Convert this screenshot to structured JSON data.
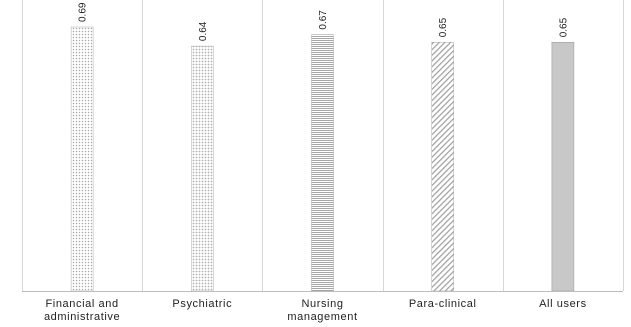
{
  "chart_data": {
    "type": "bar",
    "title": "",
    "xlabel": "",
    "ylabel": "",
    "ylim": [
      0,
      0.75
    ],
    "grid": false,
    "legend": "none",
    "categories": [
      [
        "Financial and",
        "administrative"
      ],
      [
        "Psychiatric"
      ],
      [
        "Nursing",
        "management"
      ],
      [
        "Para-clinical"
      ],
      [
        "All users"
      ]
    ],
    "values": [
      0.69,
      0.64,
      0.67,
      0.65,
      0.65
    ],
    "value_labels": [
      "0.69",
      "0.64",
      "0.67",
      "0.65",
      "0.65"
    ],
    "bar_patterns": [
      "dots-fine",
      "dots",
      "horizontal-lines",
      "diagonal-lines",
      "solid"
    ],
    "colors": {
      "pattern": "#9a9a9a",
      "solid_fill": "#c8c8c8",
      "solid_stroke": "#9f9f9f",
      "separator": "#d6d6d6",
      "axis": "#bdbdbd",
      "text": "#222222"
    }
  }
}
